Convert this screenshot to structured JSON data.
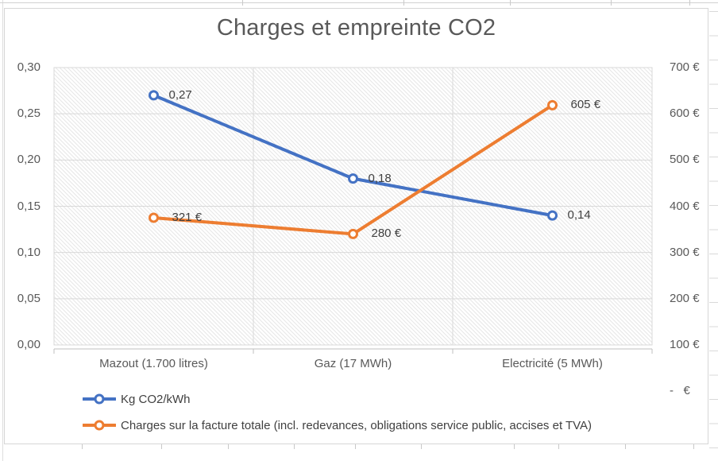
{
  "title": "Charges et empreinte CO2",
  "colors": {
    "series_blue": "#4472C4",
    "series_orange": "#ED7D31",
    "title_text": "#595959",
    "axis_text": "#595959",
    "data_label_text": "#404040",
    "gridline": "#D9D9D9",
    "axis_line": "#BFBFBF",
    "plot_hatch": "#E6E6E6"
  },
  "chart_data": {
    "type": "line",
    "title": "Charges et empreinte CO2",
    "categories": [
      "Mazout (1.700 litres)",
      "Gaz (17 MWh)",
      "Electricité (5 MWh)"
    ],
    "series": [
      {
        "name": "Kg CO2/kWh",
        "axis": "left",
        "color": "#4472C4",
        "values": [
          0.27,
          0.18,
          0.14
        ],
        "data_labels": [
          "0,27",
          "0,18",
          "0,14"
        ]
      },
      {
        "name": "Charges sur la facture totale (incl. redevances, obligations service public, accises et TVA)",
        "axis": "right",
        "color": "#ED7D31",
        "values": [
          321,
          280,
          605
        ],
        "data_labels": [
          "321 €",
          "280 €",
          "605 €"
        ]
      }
    ],
    "left_axis": {
      "min": 0,
      "max": 0.3,
      "step": 0.05,
      "tick_labels_top_to_bottom": [
        "0,30",
        "0,25",
        "0,20",
        "0,15",
        "0,10",
        "0,05",
        "0,00"
      ]
    },
    "right_axis": {
      "min": 0,
      "max": 700,
      "step": 100,
      "tick_labels_top_to_bottom": [
        "700 €",
        "600 €",
        "500 €",
        "400 €",
        "300 €",
        "200 €",
        "100 €",
        "-   €"
      ]
    },
    "grid": true,
    "plot_hatch": true,
    "legend_position": "bottom-left",
    "marker": "open-circle"
  }
}
